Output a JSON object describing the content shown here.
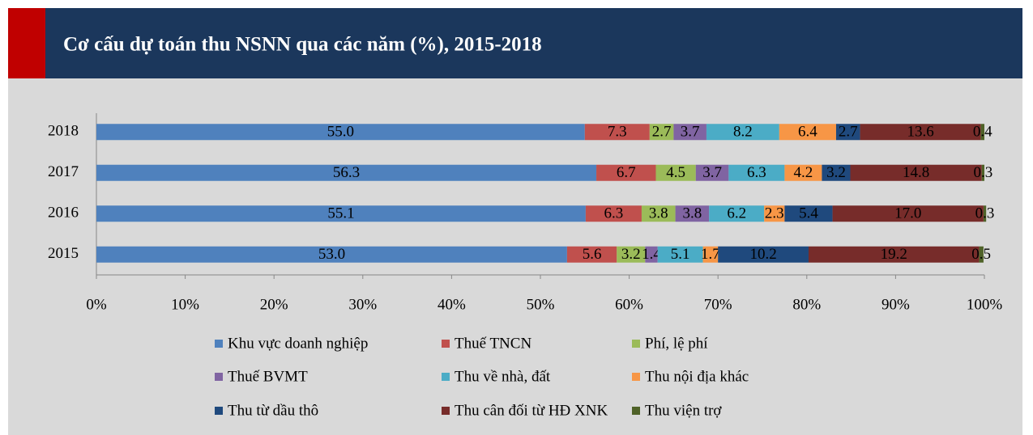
{
  "chart_data": {
    "type": "stacked_barh",
    "title": "Cơ cấu dự toán thu NSNN qua các năm (%), 2015-2018",
    "categories": [
      "2018",
      "2017",
      "2016",
      "2015"
    ],
    "series": [
      {
        "name": "Khu vực doanh nghiệp",
        "color": "#4f81bd",
        "values": [
          55.0,
          56.3,
          55.1,
          53.0
        ],
        "value_labels": [
          "55.0",
          "56.3",
          "55.1",
          "53.0"
        ]
      },
      {
        "name": "Thuế TNCN",
        "color": "#c0504d",
        "values": [
          7.3,
          6.7,
          6.3,
          5.6
        ],
        "value_labels": [
          "7.3",
          "6.7",
          "6.3",
          "5.6"
        ]
      },
      {
        "name": "Phí, lệ phí",
        "color": "#9bbb59",
        "values": [
          2.7,
          4.5,
          3.8,
          3.2
        ],
        "value_labels": [
          "2.7",
          "4.5",
          "3.8",
          "3.2"
        ]
      },
      {
        "name": "Thuế BVMT",
        "color": "#8064a2",
        "values": [
          3.7,
          3.7,
          3.8,
          1.4
        ],
        "value_labels": [
          "3.7",
          "3.7",
          "3.8",
          "1.4"
        ]
      },
      {
        "name": "Thu về nhà, đất",
        "color": "#4bacc6",
        "values": [
          8.2,
          6.3,
          6.2,
          5.1
        ],
        "value_labels": [
          "8.2",
          "6.3",
          "6.2",
          "5.1"
        ]
      },
      {
        "name": "Thu nội địa khác",
        "color": "#f79646",
        "values": [
          6.4,
          4.2,
          2.3,
          1.7
        ],
        "value_labels": [
          "6.4",
          "4.2",
          "2.3",
          "1.7"
        ]
      },
      {
        "name": "Thu từ dầu thô",
        "color": "#1f497d",
        "values": [
          2.7,
          3.2,
          5.4,
          10.2
        ],
        "value_labels": [
          "2.7",
          "3.2",
          "5.4",
          "10.2"
        ]
      },
      {
        "name": "Thu cân đối từ HĐ XNK",
        "color": "#772c2a",
        "values": [
          13.6,
          14.8,
          17.0,
          19.2
        ],
        "value_labels": [
          "13.6",
          "14.8",
          "17.0",
          "19.2"
        ]
      },
      {
        "name": "Thu viện trợ",
        "color": "#4f6228",
        "values": [
          0.4,
          0.3,
          0.3,
          0.5
        ],
        "value_labels": [
          "0.4",
          "0.3",
          "0.3",
          "0.5"
        ]
      }
    ],
    "xlim": [
      0,
      100
    ],
    "xticks": [
      {
        "value": 0,
        "label": "0%"
      },
      {
        "value": 10,
        "label": "10%"
      },
      {
        "value": 20,
        "label": "20%"
      },
      {
        "value": 30,
        "label": "30%"
      },
      {
        "value": 40,
        "label": "40%"
      },
      {
        "value": 50,
        "label": "50%"
      },
      {
        "value": 60,
        "label": "60%"
      },
      {
        "value": 70,
        "label": "70%"
      },
      {
        "value": 80,
        "label": "80%"
      },
      {
        "value": 90,
        "label": "90%"
      },
      {
        "value": 100,
        "label": "100%"
      }
    ],
    "legend": "bottom"
  }
}
